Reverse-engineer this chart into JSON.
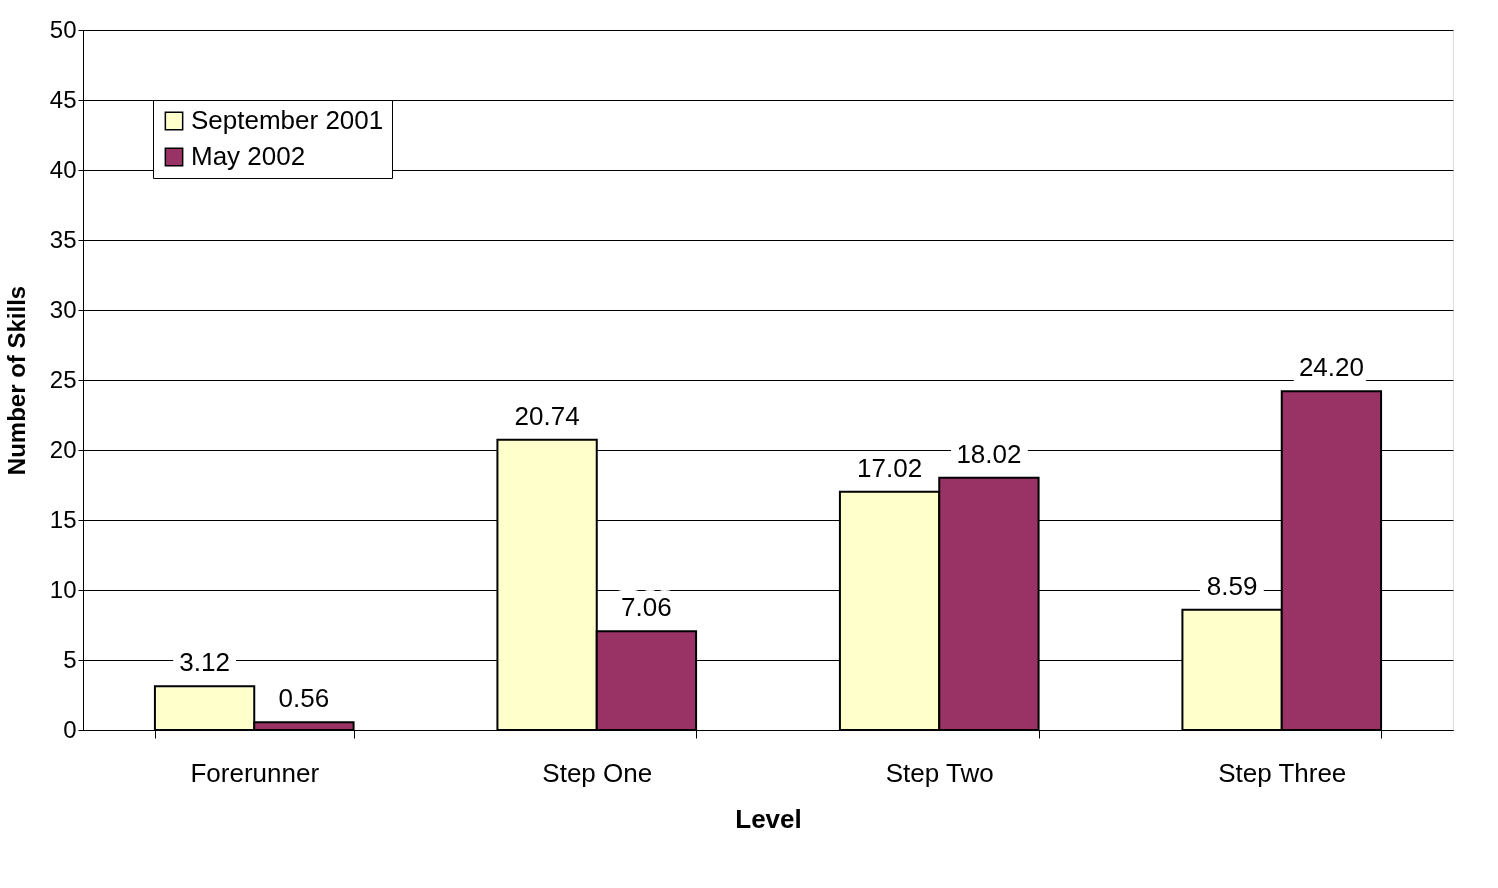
{
  "chart_data": {
    "type": "bar",
    "xlabel": "Level",
    "ylabel": "Number of Skills",
    "categories": [
      "Forerunner",
      "Step One",
      "Step Two",
      "Step Three"
    ],
    "series": [
      {
        "name": "September 2001",
        "color": "#ffffcc",
        "values": [
          3.12,
          20.74,
          17.02,
          8.59
        ],
        "value_labels": [
          "3.12",
          "20.74",
          "17.02",
          "8.59"
        ]
      },
      {
        "name": "May 2002",
        "color": "#993366",
        "values": [
          0.56,
          7.06,
          18.02,
          24.2
        ],
        "value_labels": [
          "0.56",
          "7.06",
          "18.02",
          "24.20"
        ]
      }
    ],
    "ylim": [
      0,
      50
    ],
    "yticks": [
      0,
      5,
      10,
      15,
      20,
      25,
      30,
      35,
      40,
      45,
      50
    ],
    "grid": "y",
    "legend": "top left"
  }
}
